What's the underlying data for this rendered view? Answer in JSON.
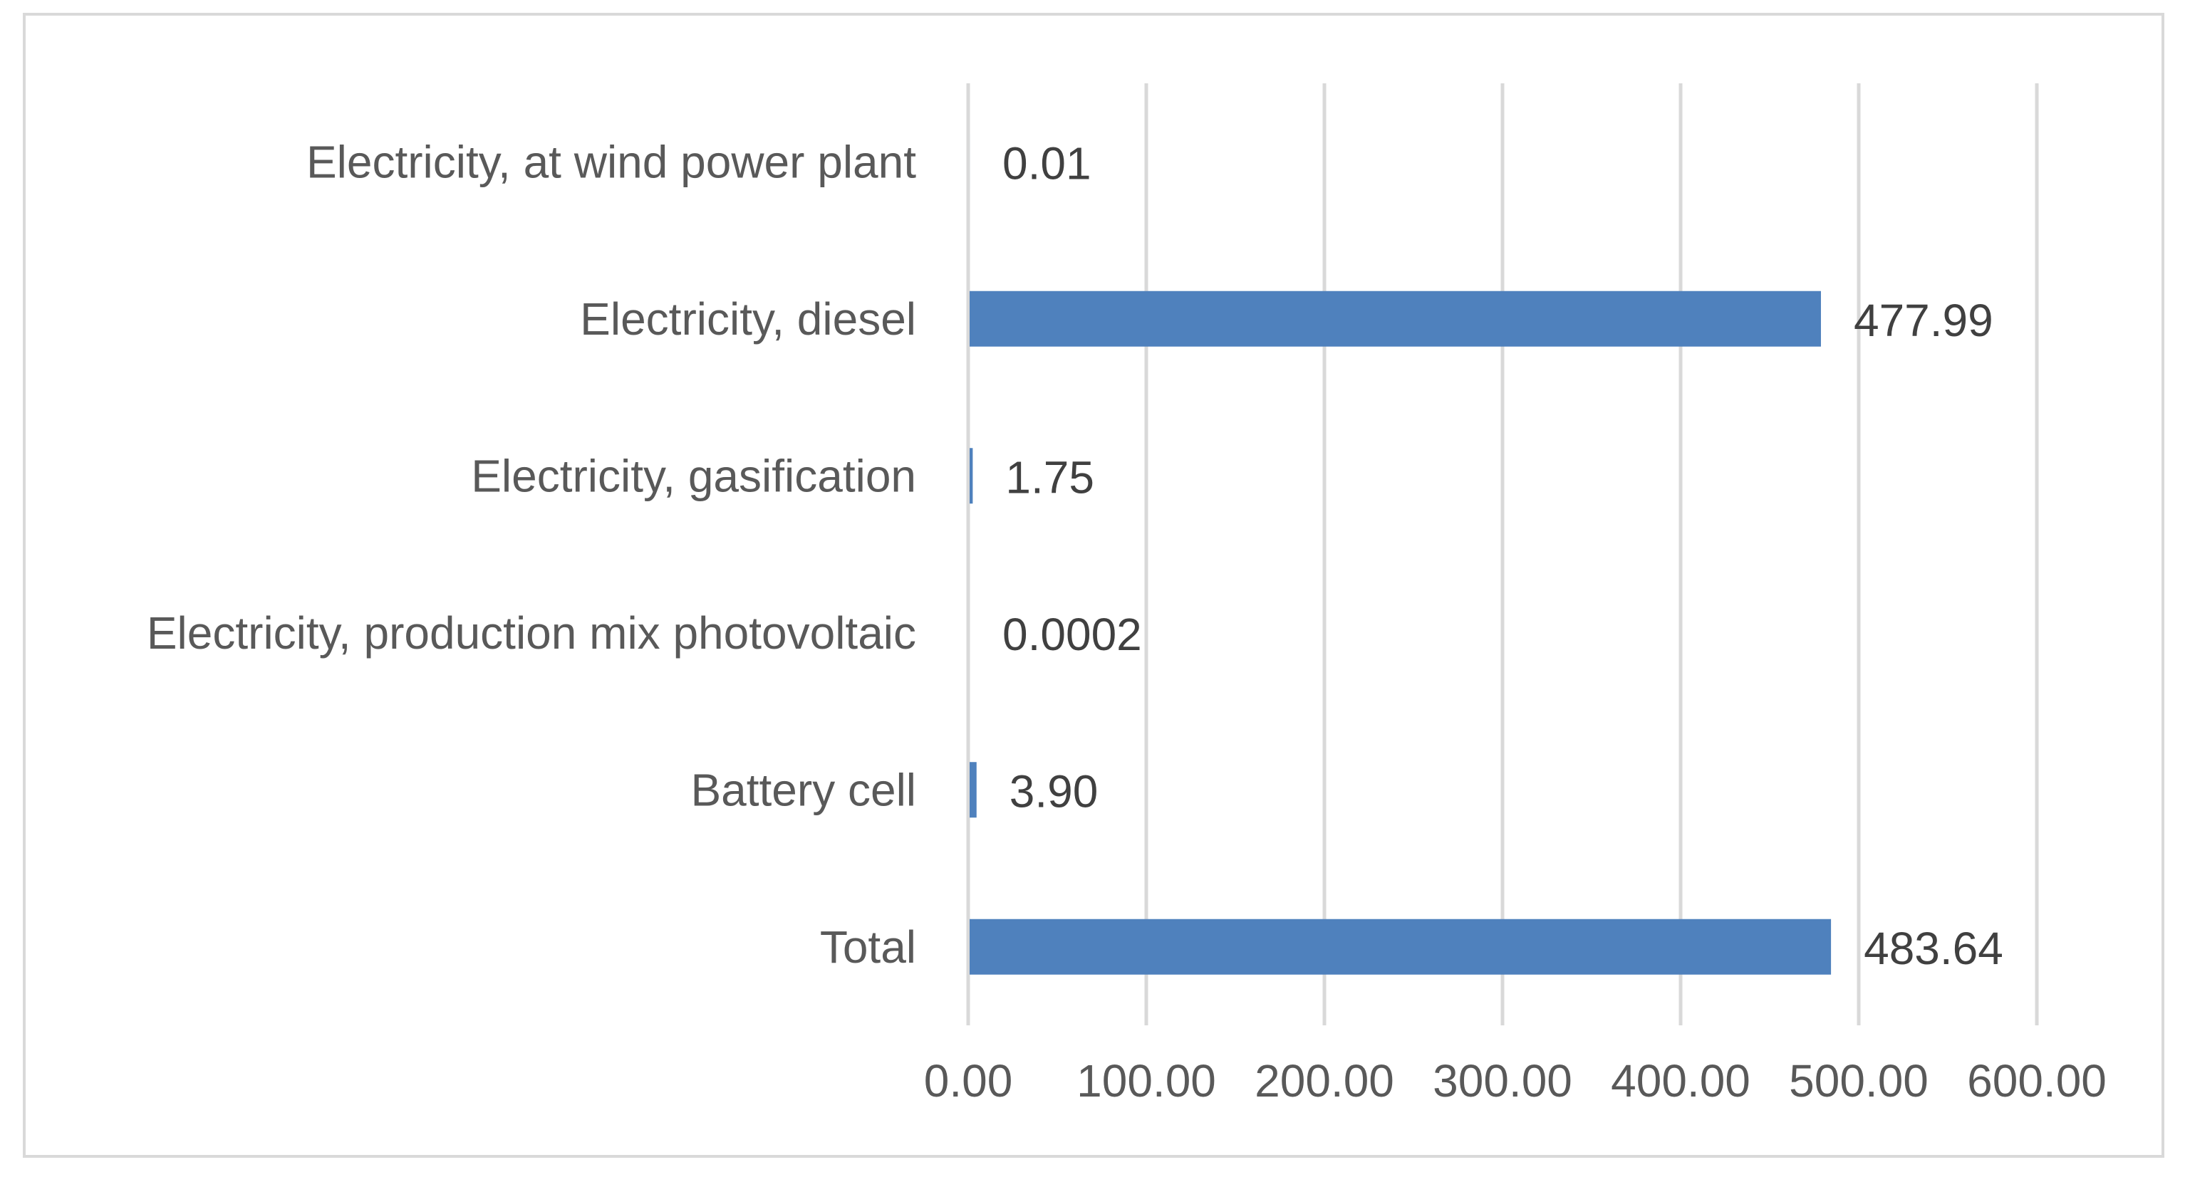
{
  "chart_data": {
    "type": "bar",
    "orientation": "horizontal",
    "title": "",
    "xlabel": "",
    "ylabel": "",
    "categories": [
      "Electricity, at wind power plant",
      "Electricity, diesel",
      "Electricity, gasification",
      "Electricity, production mix photovoltaic",
      "Battery cell",
      "Total"
    ],
    "values": [
      0.01,
      477.99,
      1.75,
      0.0002,
      3.9,
      483.64
    ],
    "data_labels": [
      "0.01",
      "477.99",
      "1.75",
      "0.0002",
      "3.90",
      "483.64"
    ],
    "xlim": [
      0,
      600
    ],
    "x_ticks": [
      0,
      100,
      200,
      300,
      400,
      500,
      600
    ],
    "x_tick_labels": [
      "0.00",
      "100.00",
      "200.00",
      "300.00",
      "400.00",
      "500.00",
      "600.00"
    ],
    "grid": true,
    "legend": "none",
    "colors": {
      "bar": "#4f81bd",
      "grid": "#d9d9d9",
      "frame": "#d9d9d9"
    }
  }
}
